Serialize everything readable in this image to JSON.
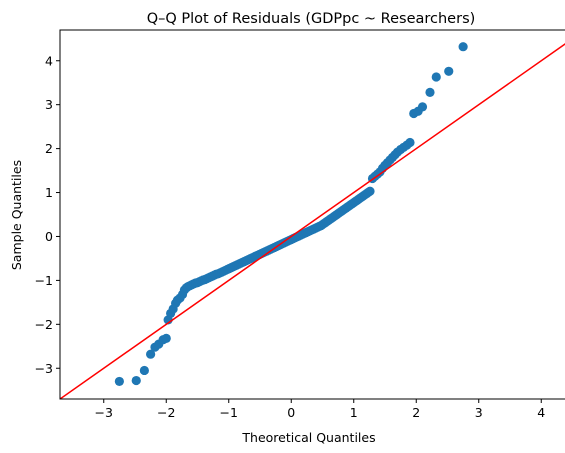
{
  "chart_data": {
    "type": "scatter",
    "title": "Q–Q Plot of Residuals (GDPpc ~ Researchers)",
    "xlabel": "Theoretical Quantiles",
    "ylabel": "Sample Quantiles",
    "xlim": [
      -3.7,
      4.7
    ],
    "ylim": [
      -3.7,
      4.7
    ],
    "xticks": [
      -3,
      -2,
      -1,
      0,
      1,
      2,
      3,
      4
    ],
    "yticks": [
      -3,
      -2,
      -1,
      0,
      1,
      2,
      3,
      4
    ],
    "grid": false,
    "colors": {
      "points": "#1f77b4",
      "reference_line": "#ff0000"
    },
    "reference_line": {
      "x": [
        -3.7,
        4.7
      ],
      "y": [
        -3.7,
        4.7
      ]
    },
    "points": {
      "x": [
        -2.75,
        -2.48,
        -2.35,
        -2.25,
        -2.18,
        -2.12,
        -2.05,
        -2.0,
        -1.97,
        -1.93,
        -1.89,
        -1.85,
        -1.82,
        -1.78,
        -1.74,
        -1.71,
        -1.68,
        -1.65,
        -1.62,
        -1.59,
        -1.56,
        -1.53,
        -1.5,
        -1.47,
        -1.44,
        -1.41,
        -1.38,
        -1.35,
        -1.32,
        -1.29,
        -1.26,
        -1.23,
        -1.2,
        -1.17,
        -1.14,
        -1.11,
        -1.08,
        -1.05,
        -1.02,
        -0.99,
        -0.96,
        -0.93,
        -0.9,
        -0.87,
        -0.84,
        -0.81,
        -0.78,
        -0.75,
        -0.72,
        -0.69,
        -0.66,
        -0.63,
        -0.6,
        -0.57,
        -0.54,
        -0.51,
        -0.48,
        -0.45,
        -0.42,
        -0.39,
        -0.36,
        -0.33,
        -0.3,
        -0.27,
        -0.24,
        -0.21,
        -0.18,
        -0.15,
        -0.12,
        -0.09,
        -0.06,
        -0.03,
        0.0,
        0.03,
        0.06,
        0.09,
        0.12,
        0.15,
        0.18,
        0.21,
        0.24,
        0.27,
        0.3,
        0.33,
        0.36,
        0.39,
        0.42,
        0.45,
        0.48,
        0.51,
        0.54,
        0.57,
        0.6,
        0.63,
        0.66,
        0.69,
        0.72,
        0.75,
        0.78,
        0.81,
        0.84,
        0.87,
        0.9,
        0.93,
        0.96,
        0.99,
        1.02,
        1.05,
        1.08,
        1.11,
        1.14,
        1.17,
        1.2,
        1.23,
        1.26,
        1.3,
        1.34,
        1.38,
        1.42,
        1.46,
        1.5,
        1.54,
        1.58,
        1.62,
        1.66,
        1.7,
        1.75,
        1.8,
        1.85,
        1.9,
        1.96,
        2.03,
        2.1,
        2.22,
        2.32,
        2.52,
        2.75
      ],
      "y": [
        -3.3,
        -3.28,
        -3.05,
        -2.68,
        -2.52,
        -2.45,
        -2.35,
        -2.32,
        -1.9,
        -1.75,
        -1.65,
        -1.52,
        -1.45,
        -1.4,
        -1.32,
        -1.22,
        -1.17,
        -1.14,
        -1.12,
        -1.1,
        -1.08,
        -1.06,
        -1.05,
        -1.03,
        -1.01,
        -0.99,
        -0.98,
        -0.96,
        -0.94,
        -0.92,
        -0.9,
        -0.88,
        -0.86,
        -0.85,
        -0.83,
        -0.81,
        -0.79,
        -0.77,
        -0.75,
        -0.73,
        -0.71,
        -0.69,
        -0.67,
        -0.65,
        -0.63,
        -0.61,
        -0.59,
        -0.57,
        -0.55,
        -0.53,
        -0.51,
        -0.49,
        -0.47,
        -0.45,
        -0.43,
        -0.41,
        -0.39,
        -0.37,
        -0.35,
        -0.33,
        -0.31,
        -0.29,
        -0.27,
        -0.25,
        -0.23,
        -0.21,
        -0.19,
        -0.17,
        -0.15,
        -0.13,
        -0.11,
        -0.09,
        -0.07,
        -0.05,
        -0.03,
        -0.01,
        0.01,
        0.03,
        0.05,
        0.07,
        0.09,
        0.11,
        0.13,
        0.15,
        0.17,
        0.19,
        0.21,
        0.23,
        0.25,
        0.28,
        0.31,
        0.34,
        0.37,
        0.4,
        0.43,
        0.46,
        0.49,
        0.52,
        0.55,
        0.58,
        0.61,
        0.64,
        0.67,
        0.7,
        0.73,
        0.76,
        0.79,
        0.82,
        0.85,
        0.88,
        0.91,
        0.94,
        0.97,
        1.0,
        1.03,
        1.32,
        1.37,
        1.42,
        1.47,
        1.55,
        1.62,
        1.68,
        1.74,
        1.8,
        1.86,
        1.92,
        1.98,
        2.03,
        2.08,
        2.14,
        2.8,
        2.85,
        2.95,
        3.28,
        3.63,
        3.76,
        4.32
      ]
    }
  }
}
